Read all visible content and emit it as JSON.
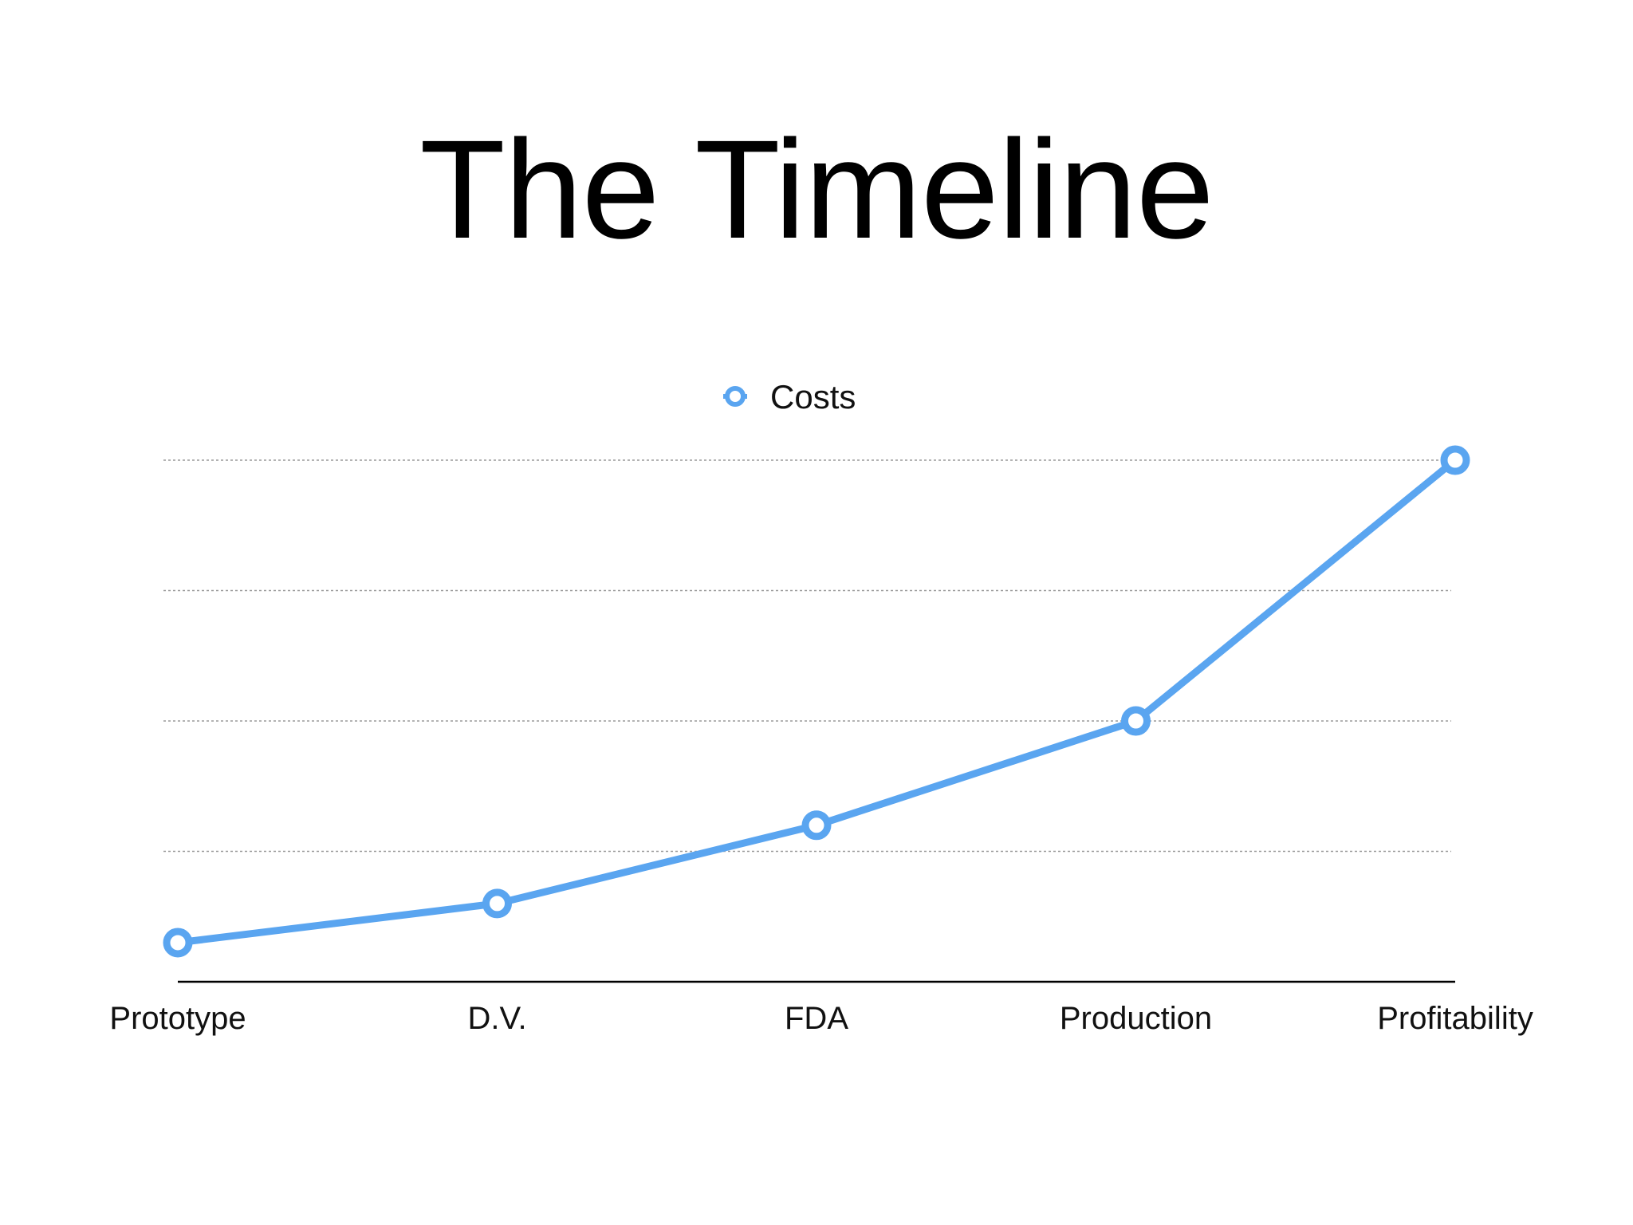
{
  "slide": {
    "title": "The Timeline"
  },
  "chart_data": {
    "type": "line",
    "title": "",
    "xlabel": "",
    "ylabel": "",
    "categories": [
      "Prototype",
      "D.V.",
      "FDA",
      "Production",
      "Profitability"
    ],
    "series": [
      {
        "name": "Costs",
        "values": [
          0.3,
          0.6,
          1.2,
          2.0,
          4.0
        ]
      }
    ],
    "ylim": [
      0,
      4
    ],
    "grid": true,
    "legend_position": "top-center",
    "colors": {
      "line": "#5aa5f0",
      "grid": "#9a9a9a",
      "axis": "#000000",
      "text": "#111111"
    }
  }
}
